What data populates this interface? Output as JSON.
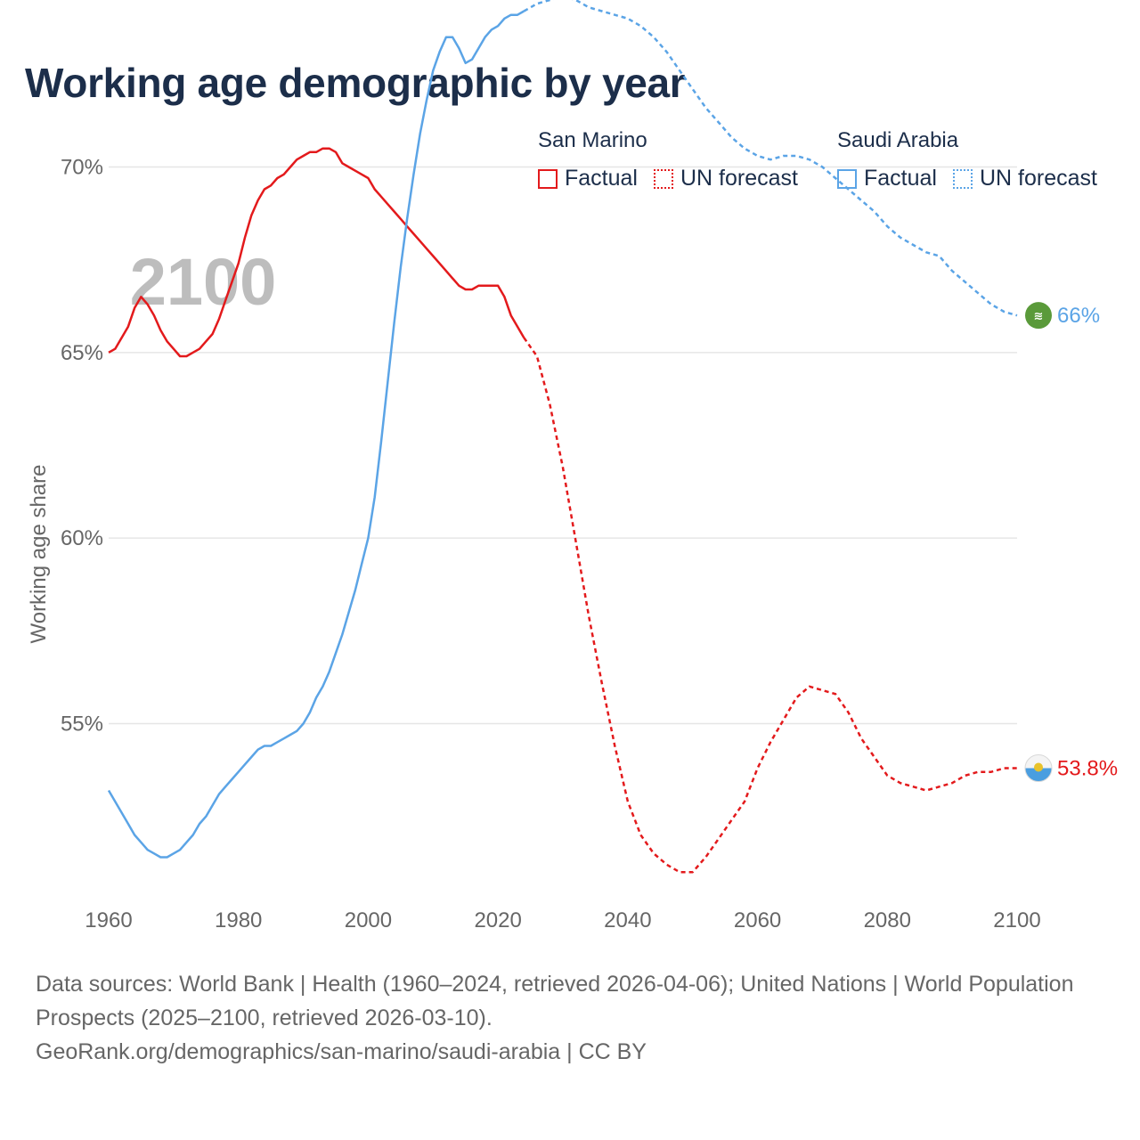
{
  "title": "Working age demographic by year",
  "legend": {
    "groups": [
      {
        "name": "San Marino",
        "factual": "Factual",
        "forecast": "UN forecast",
        "color": "#e31a1c"
      },
      {
        "name": "Saudi Arabia",
        "factual": "Factual",
        "forecast": "UN forecast",
        "color": "#5ba4e6"
      }
    ]
  },
  "footer": {
    "sources": "Data sources: World Bank | Health (1960–2024, retrieved 2026-04-06); United Nations | World Population Prospects (2025–2100, retrieved 2026-03-10).",
    "credit": "GeoRank.org/demographics/san-marino/saudi-arabia | CC BY"
  },
  "chart_data": {
    "type": "line",
    "title": "Working age demographic by year",
    "year_label": "2100",
    "xlabel": "",
    "ylabel": "Working age share",
    "xlim": [
      1960,
      2100
    ],
    "ylim": [
      50.5,
      74.5
    ],
    "x_ticks": [
      "1960",
      "1980",
      "2000",
      "2020",
      "2040",
      "2060",
      "2080",
      "2100"
    ],
    "y_ticks": [
      {
        "value": 55,
        "label": "55%"
      },
      {
        "value": 60,
        "label": "60%"
      },
      {
        "value": 65,
        "label": "65%"
      },
      {
        "value": 70,
        "label": "70%"
      }
    ],
    "grid": true,
    "series": [
      {
        "name": "San Marino",
        "color": "#e31a1c",
        "end_label": "53.8%",
        "end_icon": "san-marino-flag-icon",
        "factual": {
          "x": [
            1960,
            1961,
            1962,
            1963,
            1964,
            1965,
            1966,
            1967,
            1968,
            1969,
            1970,
            1971,
            1972,
            1973,
            1974,
            1975,
            1976,
            1977,
            1978,
            1979,
            1980,
            1981,
            1982,
            1983,
            1984,
            1985,
            1986,
            1987,
            1988,
            1989,
            1990,
            1991,
            1992,
            1993,
            1994,
            1995,
            1996,
            1997,
            1998,
            1999,
            2000,
            2001,
            2002,
            2003,
            2004,
            2005,
            2006,
            2007,
            2008,
            2009,
            2010,
            2011,
            2012,
            2013,
            2014,
            2015,
            2016,
            2017,
            2018,
            2019,
            2020,
            2021,
            2022,
            2023,
            2024
          ],
          "y": [
            65.0,
            65.1,
            65.4,
            65.7,
            66.2,
            66.5,
            66.3,
            66.0,
            65.6,
            65.3,
            65.1,
            64.9,
            64.9,
            65.0,
            65.1,
            65.3,
            65.5,
            65.9,
            66.4,
            66.9,
            67.4,
            68.1,
            68.7,
            69.1,
            69.4,
            69.5,
            69.7,
            69.8,
            70.0,
            70.2,
            70.3,
            70.4,
            70.4,
            70.5,
            70.5,
            70.4,
            70.1,
            70.0,
            69.9,
            69.8,
            69.7,
            69.4,
            69.2,
            69.0,
            68.8,
            68.6,
            68.4,
            68.2,
            68.0,
            67.8,
            67.6,
            67.4,
            67.2,
            67.0,
            66.8,
            66.7,
            66.7,
            66.8,
            66.8,
            66.8,
            66.8,
            66.5,
            66.0,
            65.7,
            65.4
          ]
        },
        "forecast": {
          "x": [
            2024,
            2026,
            2028,
            2030,
            2032,
            2034,
            2036,
            2038,
            2040,
            2042,
            2044,
            2046,
            2048,
            2050,
            2052,
            2054,
            2056,
            2058,
            2060,
            2062,
            2064,
            2066,
            2068,
            2070,
            2072,
            2074,
            2076,
            2078,
            2080,
            2082,
            2084,
            2086,
            2088,
            2090,
            2092,
            2094,
            2096,
            2098,
            2100
          ],
          "y": [
            65.4,
            64.9,
            63.6,
            61.9,
            59.9,
            57.9,
            56.1,
            54.4,
            52.9,
            52.0,
            51.5,
            51.2,
            51.0,
            51.0,
            51.4,
            51.9,
            52.4,
            52.9,
            53.8,
            54.5,
            55.1,
            55.7,
            56.0,
            55.9,
            55.8,
            55.3,
            54.6,
            54.1,
            53.6,
            53.4,
            53.3,
            53.2,
            53.3,
            53.4,
            53.6,
            53.7,
            53.7,
            53.8,
            53.8
          ]
        }
      },
      {
        "name": "Saudi Arabia",
        "color": "#5ba4e6",
        "end_label": "66%",
        "end_icon": "saudi-arabia-flag-icon",
        "factual": {
          "x": [
            1960,
            1961,
            1962,
            1963,
            1964,
            1965,
            1966,
            1967,
            1968,
            1969,
            1970,
            1971,
            1972,
            1973,
            1974,
            1975,
            1976,
            1977,
            1978,
            1979,
            1980,
            1981,
            1982,
            1983,
            1984,
            1985,
            1986,
            1987,
            1988,
            1989,
            1990,
            1991,
            1992,
            1993,
            1994,
            1995,
            1996,
            1997,
            1998,
            1999,
            2000,
            2001,
            2002,
            2003,
            2004,
            2005,
            2006,
            2007,
            2008,
            2009,
            2010,
            2011,
            2012,
            2013,
            2014,
            2015,
            2016,
            2017,
            2018,
            2019,
            2020,
            2021,
            2022,
            2023,
            2024
          ],
          "y": [
            53.2,
            52.9,
            52.6,
            52.3,
            52.0,
            51.8,
            51.6,
            51.5,
            51.4,
            51.4,
            51.5,
            51.6,
            51.8,
            52.0,
            52.3,
            52.5,
            52.8,
            53.1,
            53.3,
            53.5,
            53.7,
            53.9,
            54.1,
            54.3,
            54.4,
            54.4,
            54.5,
            54.6,
            54.7,
            54.8,
            55.0,
            55.3,
            55.7,
            56.0,
            56.4,
            56.9,
            57.4,
            58.0,
            58.6,
            59.3,
            60.0,
            61.1,
            62.6,
            64.2,
            65.8,
            67.3,
            68.6,
            69.8,
            70.9,
            71.8,
            72.6,
            73.1,
            73.5,
            73.5,
            73.2,
            72.8,
            72.9,
            73.2,
            73.5,
            73.7,
            73.8,
            74.0,
            74.1,
            74.1,
            74.2
          ]
        },
        "forecast": {
          "x": [
            2024,
            2026,
            2028,
            2030,
            2032,
            2034,
            2036,
            2038,
            2040,
            2042,
            2044,
            2046,
            2048,
            2050,
            2052,
            2054,
            2056,
            2058,
            2060,
            2062,
            2064,
            2066,
            2068,
            2070,
            2072,
            2074,
            2076,
            2078,
            2080,
            2082,
            2084,
            2086,
            2088,
            2090,
            2092,
            2094,
            2096,
            2098,
            2100
          ],
          "y": [
            74.2,
            74.4,
            74.5,
            74.6,
            74.5,
            74.3,
            74.2,
            74.1,
            74.0,
            73.8,
            73.5,
            73.1,
            72.6,
            72.1,
            71.6,
            71.2,
            70.8,
            70.5,
            70.3,
            70.2,
            70.3,
            70.3,
            70.2,
            70.0,
            69.7,
            69.4,
            69.1,
            68.8,
            68.4,
            68.1,
            67.9,
            67.7,
            67.6,
            67.2,
            66.9,
            66.6,
            66.3,
            66.1,
            66.0
          ]
        }
      }
    ]
  }
}
